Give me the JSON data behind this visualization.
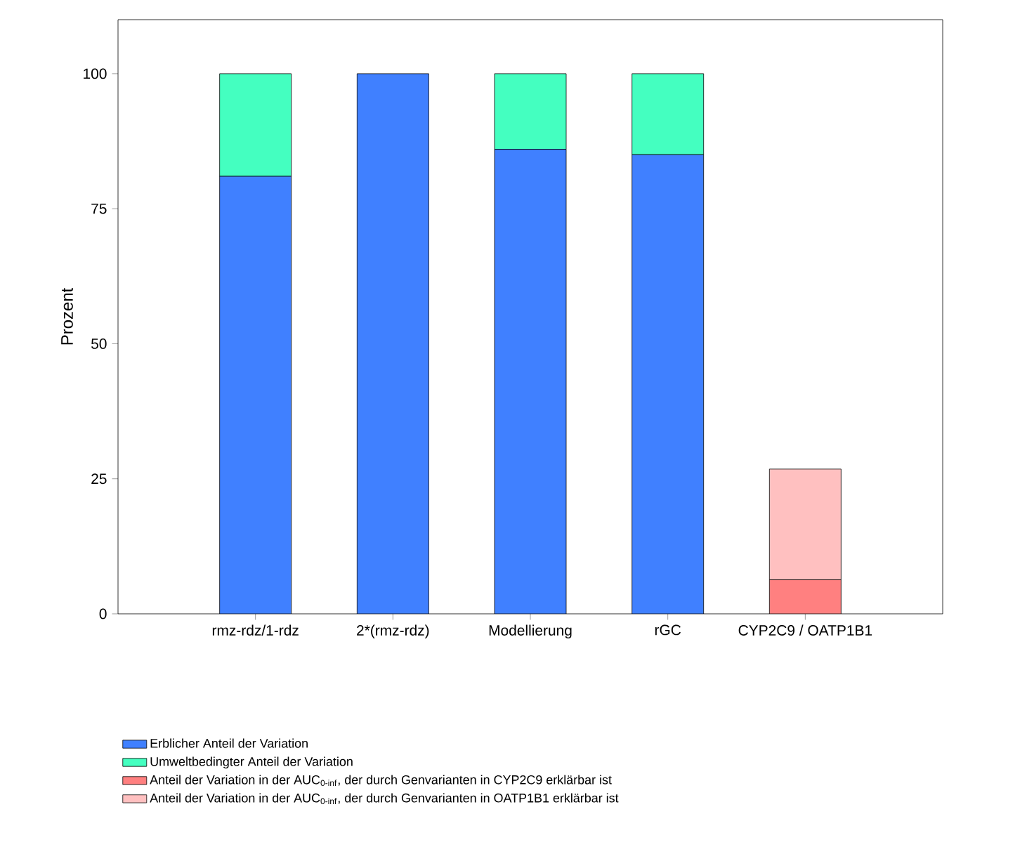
{
  "chart_data": {
    "type": "bar",
    "stacked": true,
    "ylabel": "Prozent",
    "categories": [
      "rmz-rdz/1-rdz",
      "2*(rmz-rdz)",
      "Modellierung",
      "rGC",
      "CYP2C9 / OATP1B1"
    ],
    "series": [
      {
        "name": "Erblicher Anteil der Variation",
        "color": "#4080ff",
        "values": [
          81,
          100,
          86,
          85,
          null
        ]
      },
      {
        "name": "Umweltbedingter Anteil der Variation",
        "color": "#44ffc0",
        "values": [
          19,
          null,
          14,
          15,
          null
        ]
      },
      {
        "name": "Anteil der Variation in der AUC$_{0-inf}$, der durch Genvarianten in CYP2C9 erklärbar ist",
        "color": "#ff8080",
        "values": [
          null,
          null,
          null,
          null,
          6.3
        ]
      },
      {
        "name": "Anteil der Variation in der AUC$_{0-inf}$, der durch Genvarianten in OATP1B1 erklärbar ist",
        "color": "#ffc0c0",
        "values": [
          null,
          null,
          null,
          null,
          20.5
        ]
      }
    ],
    "ylim": [
      0,
      110
    ],
    "yticks": [
      0,
      25,
      50,
      75,
      100
    ],
    "grid": false,
    "legend": "bottom"
  }
}
